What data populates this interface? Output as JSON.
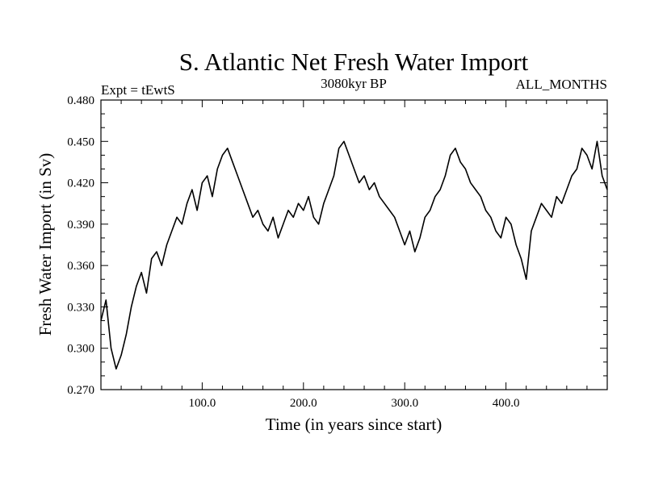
{
  "chart_data": {
    "type": "line",
    "title": "S. Atlantic Net Fresh Water Import",
    "subtitle_left": "Expt = tEwtS",
    "subtitle_center": "3080kyr BP",
    "subtitle_right": "ALL_MONTHS",
    "xlabel": "Time (in years since start)",
    "ylabel": "Fresh Water Import (in Sv)",
    "xlim": [
      0,
      500
    ],
    "ylim": [
      0.27,
      0.48
    ],
    "xticks": [
      {
        "value": 100,
        "label": "100.0"
      },
      {
        "value": 200,
        "label": "200.0"
      },
      {
        "value": 300,
        "label": "300.0"
      },
      {
        "value": 400,
        "label": "400.0"
      }
    ],
    "yticks": [
      {
        "value": 0.27,
        "label": "0.270"
      },
      {
        "value": 0.3,
        "label": "0.300"
      },
      {
        "value": 0.33,
        "label": "0.330"
      },
      {
        "value": 0.36,
        "label": "0.360"
      },
      {
        "value": 0.39,
        "label": "0.390"
      },
      {
        "value": 0.42,
        "label": "0.420"
      },
      {
        "value": 0.45,
        "label": "0.450"
      },
      {
        "value": 0.48,
        "label": "0.480"
      }
    ],
    "grid": false,
    "series": [
      {
        "name": "Net Fresh Water Import",
        "x": [
          0,
          5,
          10,
          15,
          20,
          25,
          30,
          35,
          40,
          45,
          50,
          55,
          60,
          65,
          70,
          75,
          80,
          85,
          90,
          95,
          100,
          105,
          110,
          115,
          120,
          125,
          130,
          135,
          140,
          145,
          150,
          155,
          160,
          165,
          170,
          175,
          180,
          185,
          190,
          195,
          200,
          205,
          210,
          215,
          220,
          225,
          230,
          235,
          240,
          245,
          250,
          255,
          260,
          265,
          270,
          275,
          280,
          285,
          290,
          295,
          300,
          305,
          310,
          315,
          320,
          325,
          330,
          335,
          340,
          345,
          350,
          355,
          360,
          365,
          370,
          375,
          380,
          385,
          390,
          395,
          400,
          405,
          410,
          415,
          420,
          425,
          430,
          435,
          440,
          445,
          450,
          455,
          460,
          465,
          470,
          475,
          480,
          485,
          490,
          495,
          500
        ],
        "values": [
          0.32,
          0.335,
          0.3,
          0.285,
          0.295,
          0.31,
          0.33,
          0.345,
          0.355,
          0.34,
          0.365,
          0.37,
          0.36,
          0.375,
          0.385,
          0.395,
          0.39,
          0.405,
          0.415,
          0.4,
          0.42,
          0.425,
          0.41,
          0.43,
          0.44,
          0.445,
          0.435,
          0.425,
          0.415,
          0.405,
          0.395,
          0.4,
          0.39,
          0.385,
          0.395,
          0.38,
          0.39,
          0.4,
          0.395,
          0.405,
          0.4,
          0.41,
          0.395,
          0.39,
          0.405,
          0.415,
          0.425,
          0.445,
          0.45,
          0.44,
          0.43,
          0.42,
          0.425,
          0.415,
          0.42,
          0.41,
          0.405,
          0.4,
          0.395,
          0.385,
          0.375,
          0.385,
          0.37,
          0.38,
          0.395,
          0.4,
          0.41,
          0.415,
          0.425,
          0.44,
          0.445,
          0.435,
          0.43,
          0.42,
          0.415,
          0.41,
          0.4,
          0.395,
          0.385,
          0.38,
          0.395,
          0.39,
          0.375,
          0.365,
          0.35,
          0.385,
          0.395,
          0.405,
          0.4,
          0.395,
          0.41,
          0.405,
          0.415,
          0.425,
          0.43,
          0.445,
          0.44,
          0.43,
          0.45,
          0.425,
          0.415
        ]
      }
    ]
  }
}
